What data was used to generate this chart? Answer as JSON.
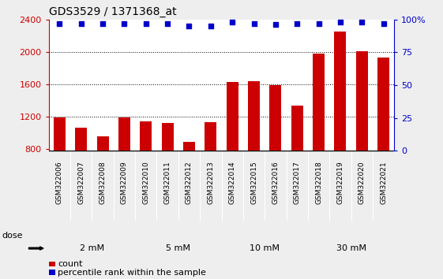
{
  "title": "GDS3529 / 1371368_at",
  "categories": [
    "GSM322006",
    "GSM322007",
    "GSM322008",
    "GSM322009",
    "GSM322010",
    "GSM322011",
    "GSM322012",
    "GSM322013",
    "GSM322014",
    "GSM322015",
    "GSM322016",
    "GSM322017",
    "GSM322018",
    "GSM322019",
    "GSM322020",
    "GSM322021"
  ],
  "counts": [
    1190,
    1060,
    960,
    1195,
    1140,
    1120,
    890,
    1130,
    1630,
    1640,
    1590,
    1340,
    1980,
    2250,
    2010,
    1930
  ],
  "percentile_values": [
    97,
    97,
    97,
    97,
    97,
    97,
    95,
    95,
    98,
    97,
    96,
    97,
    97,
    98,
    98,
    97
  ],
  "bar_color": "#cc0000",
  "dot_color": "#0000cc",
  "ylim_left": [
    780,
    2400
  ],
  "ylim_right": [
    0,
    100
  ],
  "yticks_left": [
    800,
    1200,
    1600,
    2000,
    2400
  ],
  "yticks_right": [
    0,
    25,
    50,
    75,
    100
  ],
  "ytick_right_labels": [
    "0",
    "25",
    "50",
    "75",
    "100%"
  ],
  "hgrid_lines": [
    1200,
    1600,
    2000
  ],
  "dose_groups": [
    {
      "label": "2 mM",
      "start": 0,
      "end": 4,
      "color": "#ccffcc"
    },
    {
      "label": "5 mM",
      "start": 4,
      "end": 8,
      "color": "#99ee99"
    },
    {
      "label": "10 mM",
      "start": 8,
      "end": 12,
      "color": "#ccffcc"
    },
    {
      "label": "30 mM",
      "start": 12,
      "end": 16,
      "color": "#55dd55"
    }
  ],
  "xtick_bg_color": "#bbbbbb",
  "dose_band_border_color": "#333333",
  "plot_bg_color": "#ffffff",
  "fig_bg_color": "#eeeeee",
  "legend_count_label": "count",
  "legend_pct_label": "percentile rank within the sample",
  "dose_label": "dose"
}
